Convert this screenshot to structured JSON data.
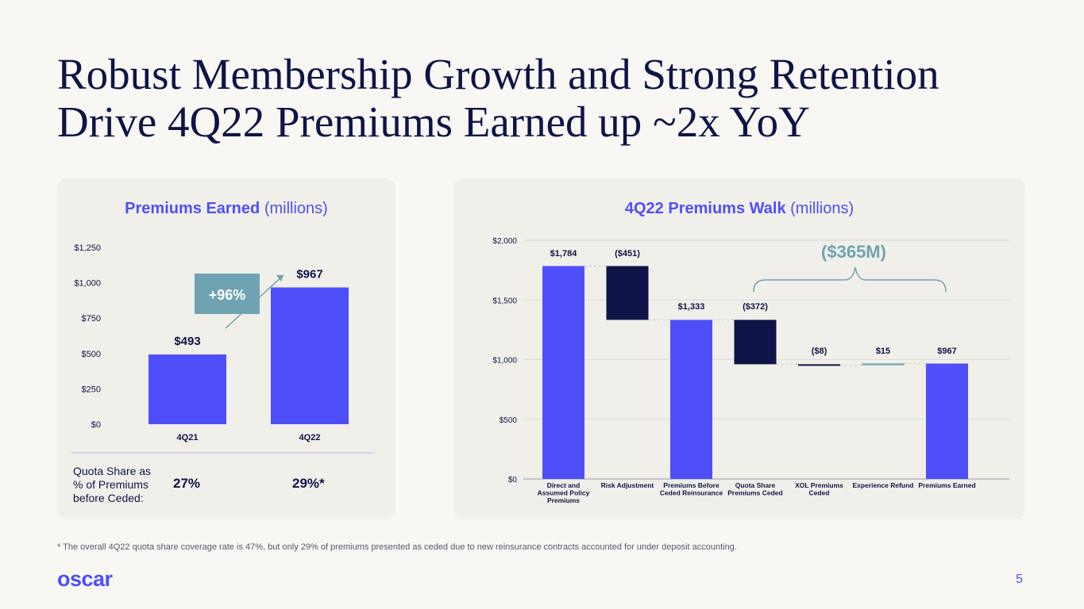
{
  "title": {
    "line1": "Robust Membership Growth and Strong Retention",
    "line2": "Drive 4Q22 Premiums Earned up ~2x YoY"
  },
  "colors": {
    "accent": "#4F4FF9",
    "navy": "#0E1446",
    "teal": "#6FA3B1",
    "card": "#F1EFEA"
  },
  "left_card": {
    "title_bold": "Premiums Earned",
    "title_rest": "(millions)",
    "growth_badge": "+96%",
    "quota_label": "Quota Share as % of Premiums before Ceded:",
    "quota_values": [
      "27%",
      "29%*"
    ]
  },
  "right_card": {
    "title_bold": "4Q22 Premiums Walk",
    "title_rest": "(millions)",
    "brace_label": "($365M)"
  },
  "chart_data": [
    {
      "type": "bar",
      "title": "Premiums Earned (millions)",
      "categories": [
        "4Q21",
        "4Q22"
      ],
      "values": [
        493,
        967
      ],
      "labels": [
        "$493",
        "$967"
      ],
      "yticks": [
        0,
        250,
        500,
        750,
        1000,
        1250
      ],
      "ytick_labels": [
        "$0",
        "$250",
        "$500",
        "$750",
        "$1,000",
        "$1,250"
      ],
      "ylim": [
        0,
        1250
      ],
      "grid": false
    },
    {
      "type": "bar",
      "subtype": "waterfall",
      "title": "4Q22 Premiums Walk (millions)",
      "categories": [
        "Direct and Assumed Policy Premiums",
        "Risk Adjustment",
        "Premiums Before Ceded Reinsurance",
        "Quota Share Premiums Ceded",
        "XOL Premiums Ceded",
        "Experience Refund",
        "Premiums Earned"
      ],
      "category_lines": [
        [
          "Direct and",
          "Assumed Policy",
          "Premiums"
        ],
        [
          "Risk Adjustment"
        ],
        [
          "Premiums Before",
          "Ceded Reinsurance"
        ],
        [
          "Quota Share",
          "Premiums Ceded"
        ],
        [
          "XOL Premiums",
          "Ceded"
        ],
        [
          "Experience Refund"
        ],
        [
          "Premiums Earned"
        ]
      ],
      "bars": [
        {
          "start": 0,
          "end": 1784,
          "kind": "total",
          "label": "$1,784"
        },
        {
          "start": 1784,
          "end": 1333,
          "kind": "decrease",
          "label": "($451)"
        },
        {
          "start": 0,
          "end": 1333,
          "kind": "total",
          "label": "$1,333"
        },
        {
          "start": 1333,
          "end": 961,
          "kind": "decrease",
          "label": "($372)"
        },
        {
          "start": 961,
          "end": 953,
          "kind": "decrease",
          "label": "($8)"
        },
        {
          "start": 953,
          "end": 968,
          "kind": "increase",
          "label": "$15"
        },
        {
          "start": 0,
          "end": 967,
          "kind": "total",
          "label": "$967"
        }
      ],
      "yticks": [
        0,
        500,
        1000,
        1500,
        2000
      ],
      "ytick_labels": [
        "$0",
        "$500",
        "$1,000",
        "$1,500",
        "$2,000"
      ],
      "ylim": [
        0,
        2000
      ],
      "grid": true
    }
  ],
  "footnote": "* The overall 4Q22 quota share coverage rate is 47%, but only 29% of premiums presented as ceded due to new reinsurance contracts accounted for under deposit accounting.",
  "footer": {
    "logo": "oscar",
    "page": "5"
  }
}
